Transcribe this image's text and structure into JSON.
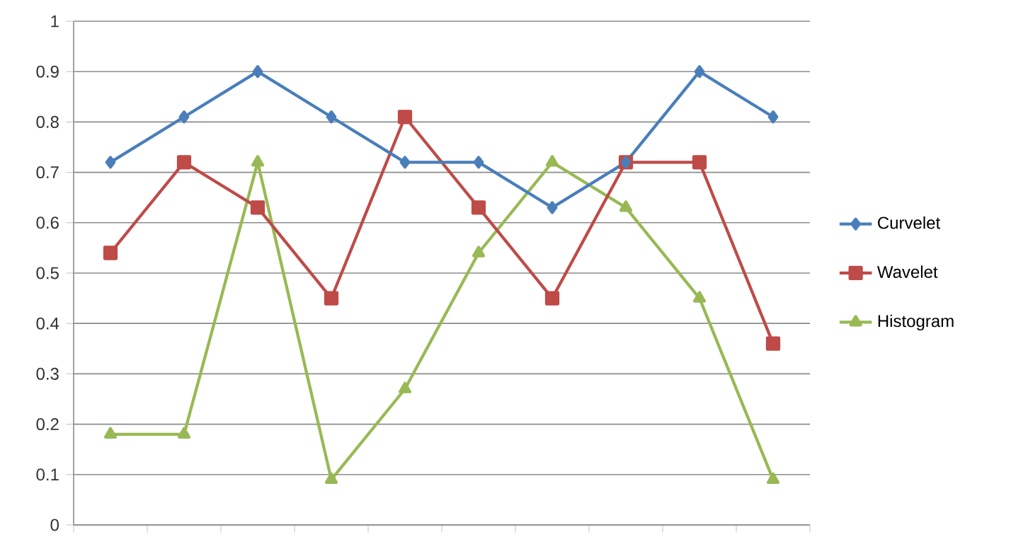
{
  "chart_data": {
    "type": "line",
    "categories": [
      null,
      null,
      null,
      null,
      null,
      null,
      null,
      null,
      null,
      null
    ],
    "series": [
      {
        "name": "Curvelet",
        "color": "#4a7ebb",
        "marker": "diamond",
        "values": [
          0.72,
          0.81,
          0.9,
          0.81,
          0.72,
          0.72,
          0.63,
          0.72,
          0.9,
          0.81
        ]
      },
      {
        "name": "Wavelet",
        "color": "#be4b48",
        "marker": "square",
        "values": [
          0.54,
          0.72,
          0.63,
          0.45,
          0.81,
          0.63,
          0.45,
          0.72,
          0.72,
          0.36
        ]
      },
      {
        "name": "Histogram",
        "color": "#98b954",
        "marker": "triangle",
        "values": [
          0.18,
          0.18,
          0.72,
          0.09,
          0.27,
          0.54,
          0.72,
          0.63,
          0.45,
          0.09
        ]
      }
    ],
    "ylim": [
      0,
      1
    ],
    "yticks": [
      0,
      0.1,
      0.2,
      0.3,
      0.4,
      0.5,
      0.6,
      0.7,
      0.8,
      0.9,
      1
    ],
    "grid": "y",
    "legend": "right",
    "tick_labels": "y",
    "line_style": "solid"
  }
}
